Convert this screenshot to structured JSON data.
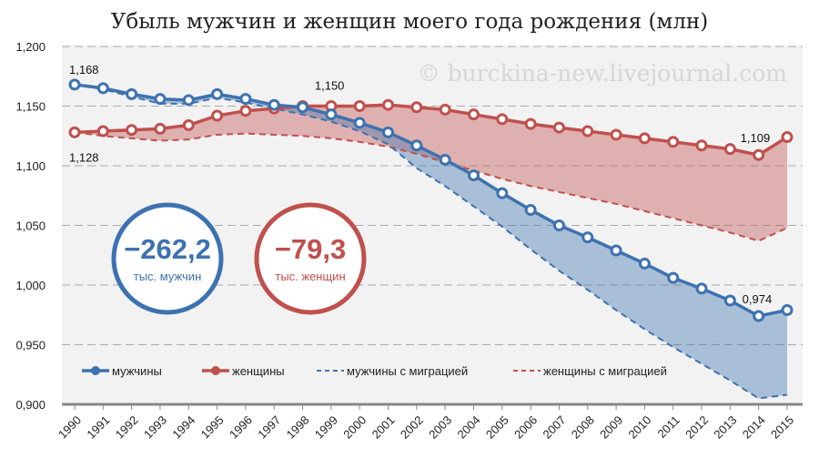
{
  "chart_data": {
    "type": "line",
    "title": "Убыль мужчин и женщин моего года рождения (млн)",
    "watermark": "© burckina-new.livejournal.com",
    "x": [
      1990,
      1991,
      1992,
      1993,
      1994,
      1995,
      1996,
      1997,
      1998,
      1999,
      2000,
      2001,
      2002,
      2003,
      2004,
      2005,
      2006,
      2007,
      2008,
      2009,
      2010,
      2011,
      2012,
      2013,
      2014,
      2015
    ],
    "ylim": [
      0.9,
      1.2
    ],
    "yticks": [
      "0,900",
      "0,950",
      "1,000",
      "1,050",
      "1,100",
      "1,150",
      "1,200"
    ],
    "grid": true,
    "legend_position": "bottom-left",
    "series": [
      {
        "name": "мужчины",
        "color": "#3d72b0",
        "style": "solid-markers",
        "values": [
          1.168,
          1.165,
          1.16,
          1.156,
          1.155,
          1.16,
          1.156,
          1.151,
          1.149,
          1.143,
          1.136,
          1.128,
          1.117,
          1.105,
          1.092,
          1.077,
          1.063,
          1.05,
          1.04,
          1.029,
          1.018,
          1.006,
          0.997,
          0.987,
          0.974,
          0.979
        ]
      },
      {
        "name": "женщины",
        "color": "#c0504d",
        "style": "solid-markers",
        "values": [
          1.128,
          1.129,
          1.13,
          1.131,
          1.134,
          1.142,
          1.146,
          1.148,
          1.15,
          1.15,
          1.15,
          1.151,
          1.149,
          1.147,
          1.143,
          1.139,
          1.135,
          1.132,
          1.129,
          1.126,
          1.123,
          1.12,
          1.117,
          1.114,
          1.109,
          1.124
        ]
      },
      {
        "name": "мужчины с миграцией",
        "color": "#3d72b0",
        "style": "dashed",
        "values": [
          1.168,
          1.164,
          1.158,
          1.152,
          1.152,
          1.157,
          1.153,
          1.148,
          1.143,
          1.137,
          1.129,
          1.118,
          1.098,
          1.083,
          1.066,
          1.049,
          1.03,
          1.012,
          0.996,
          0.979,
          0.963,
          0.948,
          0.934,
          0.92,
          0.905,
          0.908
        ]
      },
      {
        "name": "женщины с миграцией",
        "color": "#c0504d",
        "style": "dashed",
        "values": [
          1.128,
          1.125,
          1.123,
          1.121,
          1.122,
          1.126,
          1.127,
          1.126,
          1.125,
          1.123,
          1.12,
          1.116,
          1.11,
          1.103,
          1.096,
          1.089,
          1.083,
          1.078,
          1.073,
          1.068,
          1.062,
          1.056,
          1.05,
          1.044,
          1.037,
          1.048
        ]
      }
    ],
    "data_labels": [
      {
        "series": 0,
        "year": 1990,
        "text": "1,168"
      },
      {
        "series": 1,
        "year": 1990,
        "text": "1,128"
      },
      {
        "series": 1,
        "year": 1999,
        "text": "1,150"
      },
      {
        "series": 1,
        "year": 2014,
        "text": "1,109"
      },
      {
        "series": 0,
        "year": 2014,
        "text": "0,974"
      }
    ],
    "annotations": [
      {
        "value": "−262,2",
        "caption": "тыс. мужчин",
        "color": "#3d72b0"
      },
      {
        "value": "−79,3",
        "caption": "тыс. женщин",
        "color": "#c0504d"
      }
    ]
  }
}
